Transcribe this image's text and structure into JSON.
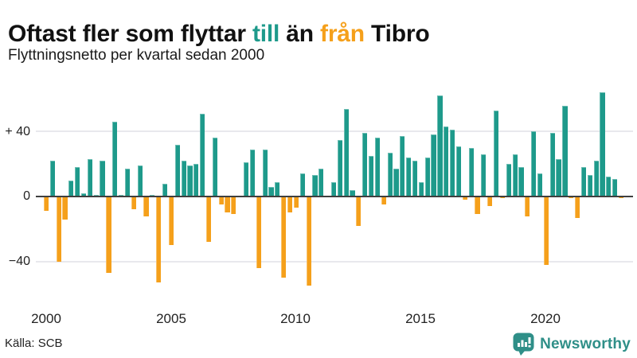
{
  "title": {
    "pre": "Oftast fler som flyttar ",
    "till": "till",
    "mid": " än ",
    "fran": "från",
    "post": " Tibro"
  },
  "subtitle": "Flyttningsnetto per kvartal sedan 2000",
  "source": "Källa: SCB",
  "logo": {
    "name": "Newsworthy",
    "icon": "newsworthy-speech-bubble-bar-chart-icon",
    "color": "#2F8F88"
  },
  "colors": {
    "positive": "#1E9A8B",
    "negative": "#F5A01B",
    "zero_line": "#3f3f3f",
    "gridline": "#e8e8ed",
    "title_text": "#111111"
  },
  "chart_data": {
    "type": "bar",
    "title": "Oftast fler som flyttar till än från Tibro",
    "subtitle": "Flyttningsnetto per kvartal sedan 2000",
    "x_start": "2000-Q1",
    "x_end": "2023-Q1",
    "x_unit": "quarter",
    "ylabel": "",
    "xlabel": "",
    "ylim": [
      -60,
      70
    ],
    "grid": true,
    "legend": "none",
    "values": [
      -9,
      22,
      -40,
      -14,
      10,
      18,
      2,
      23,
      1,
      22,
      -47,
      46,
      1,
      17,
      -8,
      19,
      -12,
      1,
      -53,
      8,
      -30,
      32,
      22,
      19,
      20,
      51,
      -28,
      36,
      -5,
      -10,
      -11,
      0,
      21,
      29,
      -44,
      29,
      6,
      9,
      -50,
      -10,
      -7,
      14,
      -55,
      13,
      17,
      0,
      9,
      35,
      54,
      4,
      -18,
      39,
      25,
      36,
      -5,
      27,
      17,
      37,
      24,
      22,
      9,
      24,
      38,
      62,
      43,
      41,
      31,
      -2,
      30,
      -11,
      26,
      -6,
      53,
      -1,
      20,
      26,
      18,
      -12,
      40,
      14,
      -42,
      39,
      23,
      56,
      -1,
      -13,
      18,
      13,
      22,
      64,
      12,
      11,
      -1
    ],
    "yticks": [
      {
        "label": "+ 40",
        "value": 40
      },
      {
        "label": "0",
        "value": 0
      },
      {
        "label": "−40",
        "value": -40
      }
    ],
    "xticks": [
      {
        "label": "2000",
        "index": 0
      },
      {
        "label": "2005",
        "index": 20
      },
      {
        "label": "2010",
        "index": 40
      },
      {
        "label": "2015",
        "index": 60
      },
      {
        "label": "2020",
        "index": 80
      }
    ]
  }
}
